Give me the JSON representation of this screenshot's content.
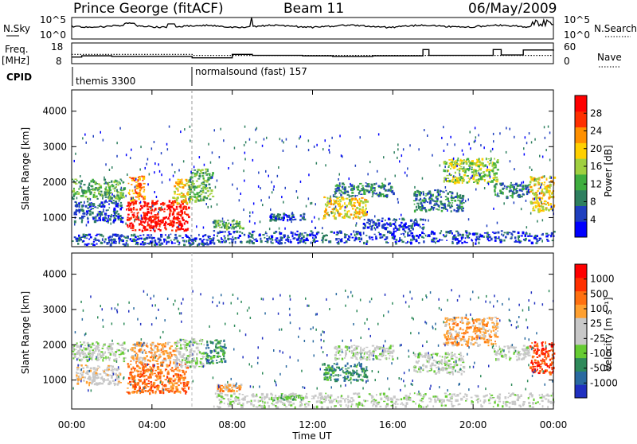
{
  "header": {
    "station": "Prince George (fitACF)",
    "beam": "Beam 11",
    "date": "06/May/2009"
  },
  "top_panels": {
    "nsky_label": "N.Sky",
    "nsky_left_ticks": [
      "10^5",
      "10^0"
    ],
    "nsky_right_ticks": [
      "10^5",
      "10^0"
    ],
    "nsearch_label": "N.Search",
    "freq_label_line1": "Freq.",
    "freq_label_line2": "[MHz]",
    "freq_ticks": [
      "18",
      "8"
    ],
    "nave_ticks": [
      "60",
      "0"
    ],
    "nave_label": "Nave",
    "cpid_label": "CPID",
    "cpid_segments": [
      {
        "label": "themis 3300",
        "start_hour": 0,
        "end_hour": 6
      },
      {
        "label": "normalsound (fast) 157",
        "start_hour": 6,
        "end_hour": 24
      }
    ]
  },
  "x_axis": {
    "label": "Time UT",
    "ticks": [
      "00:00",
      "04:00",
      "08:00",
      "12:00",
      "16:00",
      "20:00",
      "00:00"
    ],
    "tick_hours": [
      0,
      4,
      8,
      12,
      16,
      20,
      24
    ]
  },
  "power_panel": {
    "ylabel": "Slant Range [km]",
    "yticks": [
      "4000",
      "3000",
      "2000",
      "1000"
    ],
    "colorbar_label": "Power [dB]",
    "colorbar_ticks": [
      "28",
      "24",
      "20",
      "16",
      "12",
      "8",
      "4"
    ],
    "colors": [
      "#0000ff",
      "#1f3fbf",
      "#2e7f5f",
      "#3fae3f",
      "#a0d040",
      "#ffd000",
      "#ff9000",
      "#ff3000",
      "#ff0000"
    ]
  },
  "velocity_panel": {
    "ylabel": "Slant Range [km]",
    "yticks": [
      "4000",
      "3000",
      "2000",
      "1000"
    ],
    "colorbar_label": "Velocity [m s⁻¹]",
    "colorbar_ticks": [
      "1000",
      "500",
      "100",
      "25",
      "-25",
      "-100",
      "-500",
      "-1000"
    ],
    "colors": [
      "#2030c0",
      "#2a6aa0",
      "#2e8a5a",
      "#66cc33",
      "#c8c8c8",
      "#c8c8c8",
      "#ffa030",
      "#ff7010",
      "#ff3000",
      "#ff0000"
    ]
  },
  "chart_data": {
    "type": "heatmap",
    "x_range_hours": [
      0,
      24
    ],
    "y_range_km": [
      180,
      4600
    ],
    "gate_range_km": [
      180,
      4500
    ],
    "power_regions": [
      {
        "t0": 0.0,
        "t1": 2.6,
        "r0": 1550,
        "r1": 2100,
        "level": 3
      },
      {
        "t0": 0.1,
        "t1": 2.5,
        "r0": 900,
        "r1": 1500,
        "level": 1
      },
      {
        "t0": 2.7,
        "t1": 5.8,
        "r0": 650,
        "r1": 1500,
        "level": 8
      },
      {
        "t0": 2.8,
        "t1": 3.6,
        "r0": 1500,
        "r1": 2200,
        "level": 6
      },
      {
        "t0": 5.0,
        "t1": 5.9,
        "r0": 1400,
        "r1": 2100,
        "level": 5
      },
      {
        "t0": 5.8,
        "t1": 7.0,
        "r0": 1500,
        "r1": 2400,
        "level": 3
      },
      {
        "t0": 7.0,
        "t1": 8.5,
        "r0": 700,
        "r1": 950,
        "level": 3
      },
      {
        "t0": 9.8,
        "t1": 11.6,
        "r0": 950,
        "r1": 1150,
        "level": 1
      },
      {
        "t0": 12.5,
        "t1": 14.7,
        "r0": 1000,
        "r1": 1600,
        "level": 5
      },
      {
        "t0": 13.0,
        "t1": 16.0,
        "r0": 1600,
        "r1": 2000,
        "level": 2
      },
      {
        "t0": 14.5,
        "t1": 17.5,
        "r0": 700,
        "r1": 1000,
        "level": 1
      },
      {
        "t0": 17.0,
        "t1": 19.5,
        "r0": 1200,
        "r1": 1800,
        "level": 2
      },
      {
        "t0": 18.5,
        "t1": 21.2,
        "r0": 2000,
        "r1": 2700,
        "level": 4
      },
      {
        "t0": 21.0,
        "t1": 22.8,
        "r0": 1600,
        "r1": 2000,
        "level": 2
      },
      {
        "t0": 22.8,
        "t1": 24.0,
        "r0": 1200,
        "r1": 2200,
        "level": 5
      },
      {
        "t0": 7.0,
        "t1": 24.0,
        "r0": 300,
        "r1": 650,
        "level": 1
      },
      {
        "t0": 0.0,
        "t1": 7.0,
        "r0": 250,
        "r1": 550,
        "level": 1
      }
    ],
    "velocity_regions": [
      {
        "t0": 0.0,
        "t1": 2.6,
        "r0": 1550,
        "r1": 2100,
        "level": 4
      },
      {
        "t0": 0.2,
        "t1": 2.4,
        "r0": 900,
        "r1": 1450,
        "level": 5
      },
      {
        "t0": 2.7,
        "t1": 5.8,
        "r0": 650,
        "r1": 1500,
        "level": 7
      },
      {
        "t0": 2.9,
        "t1": 5.2,
        "r0": 1500,
        "r1": 2100,
        "level": 6
      },
      {
        "t0": 5.1,
        "t1": 6.6,
        "r0": 1400,
        "r1": 2200,
        "level": 4
      },
      {
        "t0": 6.6,
        "t1": 7.6,
        "r0": 1500,
        "r1": 2200,
        "level": 2
      },
      {
        "t0": 7.2,
        "t1": 8.4,
        "r0": 700,
        "r1": 900,
        "level": 6
      },
      {
        "t0": 9.8,
        "t1": 11.5,
        "r0": 450,
        "r1": 600,
        "level": 3
      },
      {
        "t0": 12.5,
        "t1": 14.7,
        "r0": 1000,
        "r1": 1500,
        "level": 2
      },
      {
        "t0": 13.0,
        "t1": 16.0,
        "r0": 1600,
        "r1": 2000,
        "level": 4
      },
      {
        "t0": 17.0,
        "t1": 19.5,
        "r0": 1200,
        "r1": 1800,
        "level": 4
      },
      {
        "t0": 18.5,
        "t1": 21.2,
        "r0": 2000,
        "r1": 2800,
        "level": 6
      },
      {
        "t0": 21.0,
        "t1": 22.8,
        "r0": 1600,
        "r1": 2000,
        "level": 4
      },
      {
        "t0": 22.8,
        "t1": 24.0,
        "r0": 1200,
        "r1": 2100,
        "level": 8
      },
      {
        "t0": 7.0,
        "t1": 24.0,
        "r0": 250,
        "r1": 650,
        "level": 4
      }
    ],
    "freq_series": {
      "hours": [
        0,
        0.5,
        2.0,
        6.0,
        8.0,
        9.0,
        11.5,
        13.0,
        15.0,
        17.5,
        17.8,
        21.0,
        21.4,
        22.5,
        24.0
      ],
      "mhz": [
        11.2,
        11.8,
        11.5,
        10.8,
        12.5,
        12.0,
        11.8,
        11.5,
        11.8,
        14.8,
        12.0,
        14.8,
        12.2,
        14.6,
        14.2
      ]
    },
    "nave_series": {
      "hours": [
        0,
        6.0,
        6.01,
        24.0
      ],
      "values": [
        27,
        27,
        24,
        24
      ]
    }
  }
}
